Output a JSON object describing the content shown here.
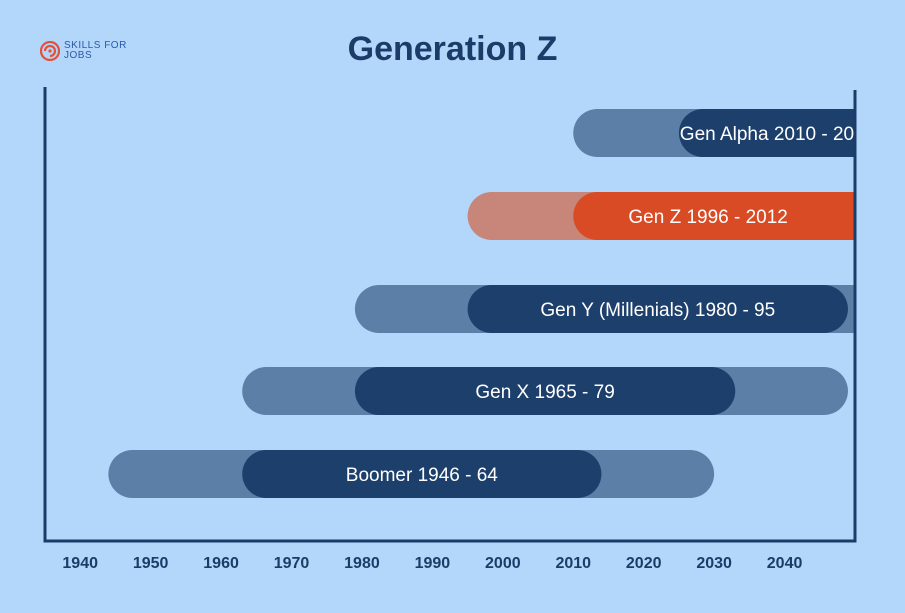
{
  "logo": {
    "text": "SKILLS FOR JOBS",
    "icon": "spiral-icon",
    "color": "#e4513a"
  },
  "chart_data": {
    "type": "bar",
    "title": "Generation Z",
    "xlim": [
      1935,
      2050
    ],
    "x_ticks": [
      1940,
      1950,
      1960,
      1970,
      1980,
      1990,
      2000,
      2010,
      2020,
      2030,
      2040
    ],
    "generations": [
      {
        "label": "Gen Alpha  2010 - 20",
        "outer_range": [
          2010,
          2050
        ],
        "inner_range": [
          2025,
          2050
        ],
        "highlight": false
      },
      {
        "label": "Gen Z  1996 - 2012",
        "outer_range": [
          1995,
          2050
        ],
        "inner_range": [
          2010,
          2050
        ],
        "highlight": true
      },
      {
        "label": "Gen Y (Millenials) 1980 - 95",
        "outer_range": [
          1979,
          2050
        ],
        "inner_range": [
          1995,
          2049
        ],
        "highlight": false
      },
      {
        "label": "Gen X 1965 - 79",
        "outer_range": [
          1963,
          2049
        ],
        "inner_range": [
          1979,
          2033
        ],
        "highlight": false
      },
      {
        "label": "Boomer 1946 - 64",
        "outer_range": [
          1944,
          2030
        ],
        "inner_range": [
          1963,
          2014
        ],
        "highlight": false
      }
    ],
    "colors": {
      "background": "#b3d6fb",
      "outer_bar": "#5c7fa8",
      "inner_bar": "#1d3f6b",
      "highlight_outer": "#c8857a",
      "highlight_inner": "#d84b25",
      "axis": "#1b3c68",
      "tick_label": "#1b3c68"
    }
  }
}
